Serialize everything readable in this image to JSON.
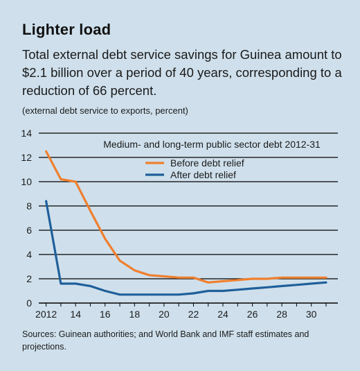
{
  "title": "Lighter load",
  "subtitle": "Total external debt service savings for Guinea amount to $2.1 billion over a period of 40 years, corresponding to a reduction of 66 percent.",
  "unit_note": "(external debt service to exports, percent)",
  "sources": "Sources: Guinean authorities; and World Bank and IMF staff estimates and projections.",
  "chart_data": {
    "type": "line",
    "title": "Medium- and long-term public sector debt 2012-31",
    "xlabel": "",
    "ylabel": "",
    "x": [
      2012,
      2013,
      2014,
      2015,
      2016,
      2017,
      2018,
      2019,
      2020,
      2021,
      2022,
      2023,
      2024,
      2025,
      2026,
      2027,
      2028,
      2029,
      2030,
      2031
    ],
    "xlim": [
      2011.5,
      2031.8
    ],
    "ylim": [
      0,
      14
    ],
    "xticks": [
      2012,
      2014,
      2016,
      2018,
      2020,
      2022,
      2024,
      2026,
      2028,
      2030
    ],
    "xtick_labels": [
      "2012",
      "14",
      "16",
      "18",
      "20",
      "22",
      "24",
      "26",
      "28",
      "30"
    ],
    "yticks": [
      0,
      2,
      4,
      6,
      8,
      10,
      12,
      14
    ],
    "ytick_labels": [
      "0",
      "2",
      "4",
      "6",
      "8",
      "10",
      "12",
      "14"
    ],
    "grid": "horizontal",
    "legend_position": "top-center",
    "series": [
      {
        "name": "Before debt relief",
        "color": "#f07f2e",
        "values": [
          12.5,
          10.2,
          10.0,
          7.6,
          5.3,
          3.5,
          2.7,
          2.3,
          2.2,
          2.1,
          2.1,
          1.7,
          1.8,
          1.9,
          2.0,
          2.0,
          2.1,
          2.1,
          2.1,
          2.1
        ]
      },
      {
        "name": "After debt relief",
        "color": "#1f5f9a",
        "values": [
          8.4,
          1.6,
          1.6,
          1.4,
          1.0,
          0.7,
          0.7,
          0.7,
          0.7,
          0.7,
          0.8,
          1.0,
          1.0,
          1.1,
          1.2,
          1.3,
          1.4,
          1.5,
          1.6,
          1.7
        ]
      }
    ]
  }
}
